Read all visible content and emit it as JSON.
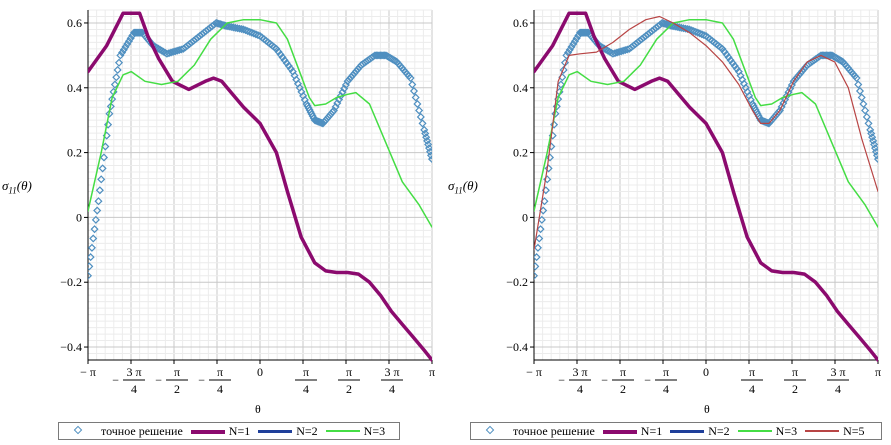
{
  "chart_data": [
    {
      "type": "line",
      "xlabel": "θ",
      "ylabel": "σ",
      "ylabel_sub": "11",
      "ylabel_arg": "(θ)",
      "xlim": [
        -3.1416,
        3.1416
      ],
      "ylim": [
        -0.44,
        0.64
      ],
      "grid": true,
      "legend_placement": "bottom",
      "yticks": [
        {
          "v": 0.6,
          "label": "0.6"
        },
        {
          "v": 0.4,
          "label": "0.4"
        },
        {
          "v": 0.2,
          "label": "0.2"
        },
        {
          "v": 0.0,
          "label": "0"
        },
        {
          "v": -0.2,
          "label": "−0.2"
        },
        {
          "v": -0.4,
          "label": "−0.4"
        }
      ],
      "xticks": [
        {
          "v": -3.1416,
          "coef": "−",
          "num": "π",
          "den": ""
        },
        {
          "v": -2.3562,
          "coef": "−",
          "num": "3 π",
          "den": "4"
        },
        {
          "v": -1.5708,
          "coef": "−",
          "num": "π",
          "den": "2"
        },
        {
          "v": -0.7854,
          "coef": "−",
          "num": "π",
          "den": "4"
        },
        {
          "v": 0,
          "coef": "",
          "num": "0",
          "den": ""
        },
        {
          "v": 0.7854,
          "coef": "",
          "num": "π",
          "den": "4"
        },
        {
          "v": 1.5708,
          "coef": "",
          "num": "π",
          "den": "2"
        },
        {
          "v": 2.3562,
          "coef": "",
          "num": "3 π",
          "den": "4"
        },
        {
          "v": 3.1416,
          "coef": "",
          "num": "π",
          "den": ""
        }
      ],
      "legend": [
        "точное решение",
        "N=1",
        "N=2",
        "N=3"
      ],
      "series": [
        {
          "name": "точное решение",
          "style": "diamond",
          "color": "#4f8fc0",
          "x": [
            -3.1416,
            -2.95,
            -2.75,
            -2.55,
            -2.3,
            -2.15,
            -1.95,
            -1.7,
            -1.4,
            -1.1,
            -0.8,
            -0.6,
            -0.3,
            0,
            0.3,
            0.6,
            0.85,
            1.0,
            1.15,
            1.35,
            1.6,
            1.85,
            2.1,
            2.3,
            2.5,
            2.75,
            3.0,
            3.1416
          ],
          "y": [
            -0.18,
            0.05,
            0.32,
            0.5,
            0.57,
            0.57,
            0.53,
            0.505,
            0.52,
            0.56,
            0.6,
            0.59,
            0.58,
            0.56,
            0.52,
            0.45,
            0.35,
            0.3,
            0.29,
            0.33,
            0.42,
            0.47,
            0.5,
            0.5,
            0.48,
            0.43,
            0.27,
            0.18
          ]
        },
        {
          "name": "N=1",
          "style": "line",
          "color": "#8b0a6e",
          "width": 3.5,
          "x": [
            -3.1416,
            -2.8,
            -2.5,
            -2.2,
            -2.05,
            -1.85,
            -1.6,
            -1.3,
            -1.0,
            -0.85,
            -0.7,
            -0.5,
            -0.3,
            0,
            0.3,
            0.5,
            0.75,
            1.0,
            1.2,
            1.4,
            1.6,
            1.8,
            2.0,
            2.2,
            2.4,
            2.6,
            2.8,
            3.0,
            3.1416
          ],
          "y": [
            0.45,
            0.53,
            0.63,
            0.63,
            0.56,
            0.49,
            0.42,
            0.395,
            0.42,
            0.43,
            0.42,
            0.38,
            0.34,
            0.29,
            0.2,
            0.08,
            -0.06,
            -0.14,
            -0.165,
            -0.17,
            -0.17,
            -0.175,
            -0.2,
            -0.24,
            -0.29,
            -0.33,
            -0.37,
            -0.41,
            -0.44
          ]
        },
        {
          "name": "N=2",
          "style": "line",
          "color": "#1f3f9a",
          "width": 2,
          "x": [],
          "y": []
        },
        {
          "name": "N=3",
          "style": "line",
          "color": "#44dd44",
          "width": 1.5,
          "x": [
            -3.1416,
            -2.9,
            -2.7,
            -2.5,
            -2.35,
            -2.1,
            -1.8,
            -1.5,
            -1.2,
            -0.9,
            -0.6,
            -0.3,
            0,
            0.3,
            0.5,
            0.7,
            0.9,
            1.0,
            1.2,
            1.4,
            1.6,
            1.75,
            2.0,
            2.3,
            2.6,
            2.9,
            3.1416
          ],
          "y": [
            0.02,
            0.2,
            0.37,
            0.44,
            0.45,
            0.42,
            0.41,
            0.42,
            0.47,
            0.55,
            0.6,
            0.61,
            0.61,
            0.6,
            0.55,
            0.46,
            0.37,
            0.345,
            0.35,
            0.37,
            0.38,
            0.385,
            0.35,
            0.23,
            0.11,
            0.04,
            -0.03
          ]
        }
      ]
    },
    {
      "type": "line",
      "xlabel": "θ",
      "ylabel": "σ",
      "ylabel_sub": "11",
      "ylabel_arg": "(θ)",
      "xlim": [
        -3.1416,
        3.1416
      ],
      "ylim": [
        -0.44,
        0.64
      ],
      "grid": true,
      "legend_placement": "bottom",
      "yticks": [
        {
          "v": 0.6,
          "label": "0.6"
        },
        {
          "v": 0.4,
          "label": "0.4"
        },
        {
          "v": 0.2,
          "label": "0.2"
        },
        {
          "v": 0.0,
          "label": "0"
        },
        {
          "v": -0.2,
          "label": "−0.2"
        },
        {
          "v": -0.4,
          "label": "−0.4"
        }
      ],
      "xticks": [
        {
          "v": -3.1416,
          "coef": "−",
          "num": "π",
          "den": ""
        },
        {
          "v": -2.3562,
          "coef": "−",
          "num": "3 π",
          "den": "4"
        },
        {
          "v": -1.5708,
          "coef": "−",
          "num": "π",
          "den": "2"
        },
        {
          "v": -0.7854,
          "coef": "−",
          "num": "π",
          "den": "4"
        },
        {
          "v": 0,
          "coef": "",
          "num": "0",
          "den": ""
        },
        {
          "v": 0.7854,
          "coef": "",
          "num": "π",
          "den": "4"
        },
        {
          "v": 1.5708,
          "coef": "",
          "num": "π",
          "den": "2"
        },
        {
          "v": 2.3562,
          "coef": "",
          "num": "3 π",
          "den": "4"
        },
        {
          "v": 3.1416,
          "coef": "",
          "num": "π",
          "den": ""
        }
      ],
      "legend": [
        "точное решение",
        "N=1",
        "N=2",
        "N=3",
        "N=5"
      ],
      "series": [
        {
          "name": "точное решение",
          "style": "diamond",
          "color": "#4f8fc0",
          "x": [
            -3.1416,
            -2.95,
            -2.75,
            -2.55,
            -2.3,
            -2.15,
            -1.95,
            -1.7,
            -1.4,
            -1.1,
            -0.8,
            -0.6,
            -0.3,
            0,
            0.3,
            0.6,
            0.85,
            1.0,
            1.15,
            1.35,
            1.6,
            1.85,
            2.1,
            2.3,
            2.5,
            2.75,
            3.0,
            3.1416
          ],
          "y": [
            -0.18,
            0.05,
            0.32,
            0.5,
            0.57,
            0.57,
            0.53,
            0.505,
            0.52,
            0.56,
            0.6,
            0.59,
            0.58,
            0.56,
            0.52,
            0.45,
            0.35,
            0.3,
            0.29,
            0.33,
            0.42,
            0.47,
            0.5,
            0.5,
            0.48,
            0.43,
            0.27,
            0.18
          ]
        },
        {
          "name": "N=1",
          "style": "line",
          "color": "#8b0a6e",
          "width": 3.5,
          "x": [
            -3.1416,
            -2.8,
            -2.5,
            -2.2,
            -2.05,
            -1.85,
            -1.6,
            -1.3,
            -1.0,
            -0.85,
            -0.7,
            -0.5,
            -0.3,
            0,
            0.3,
            0.5,
            0.75,
            1.0,
            1.2,
            1.4,
            1.6,
            1.8,
            2.0,
            2.2,
            2.4,
            2.6,
            2.8,
            3.0,
            3.1416
          ],
          "y": [
            0.45,
            0.53,
            0.63,
            0.63,
            0.56,
            0.49,
            0.42,
            0.395,
            0.42,
            0.43,
            0.42,
            0.38,
            0.34,
            0.29,
            0.2,
            0.08,
            -0.06,
            -0.14,
            -0.165,
            -0.17,
            -0.17,
            -0.175,
            -0.2,
            -0.24,
            -0.29,
            -0.33,
            -0.37,
            -0.41,
            -0.44
          ]
        },
        {
          "name": "N=2",
          "style": "line",
          "color": "#1f3f9a",
          "width": 2,
          "x": [],
          "y": []
        },
        {
          "name": "N=3",
          "style": "line",
          "color": "#44dd44",
          "width": 1.5,
          "x": [
            -3.1416,
            -2.9,
            -2.7,
            -2.5,
            -2.35,
            -2.1,
            -1.8,
            -1.5,
            -1.2,
            -0.9,
            -0.6,
            -0.3,
            0,
            0.3,
            0.5,
            0.7,
            0.9,
            1.0,
            1.2,
            1.4,
            1.6,
            1.75,
            2.0,
            2.3,
            2.6,
            2.9,
            3.1416
          ],
          "y": [
            0.02,
            0.2,
            0.37,
            0.44,
            0.45,
            0.42,
            0.41,
            0.42,
            0.47,
            0.55,
            0.6,
            0.61,
            0.61,
            0.6,
            0.55,
            0.46,
            0.37,
            0.345,
            0.35,
            0.37,
            0.38,
            0.385,
            0.35,
            0.23,
            0.11,
            0.04,
            -0.03
          ]
        },
        {
          "name": "N=5",
          "style": "line",
          "color": "#b84545",
          "width": 1.2,
          "x": [
            -3.1416,
            -2.9,
            -2.7,
            -2.5,
            -2.3,
            -2.0,
            -1.7,
            -1.4,
            -1.1,
            -0.85,
            -0.6,
            -0.3,
            0,
            0.3,
            0.6,
            0.85,
            1.0,
            1.15,
            1.35,
            1.6,
            1.85,
            2.1,
            2.35,
            2.6,
            2.85,
            3.1416
          ],
          "y": [
            -0.1,
            0.15,
            0.42,
            0.5,
            0.505,
            0.51,
            0.54,
            0.58,
            0.61,
            0.62,
            0.6,
            0.57,
            0.53,
            0.48,
            0.41,
            0.33,
            0.29,
            0.29,
            0.33,
            0.42,
            0.48,
            0.5,
            0.48,
            0.4,
            0.24,
            0.08
          ]
        }
      ]
    }
  ]
}
